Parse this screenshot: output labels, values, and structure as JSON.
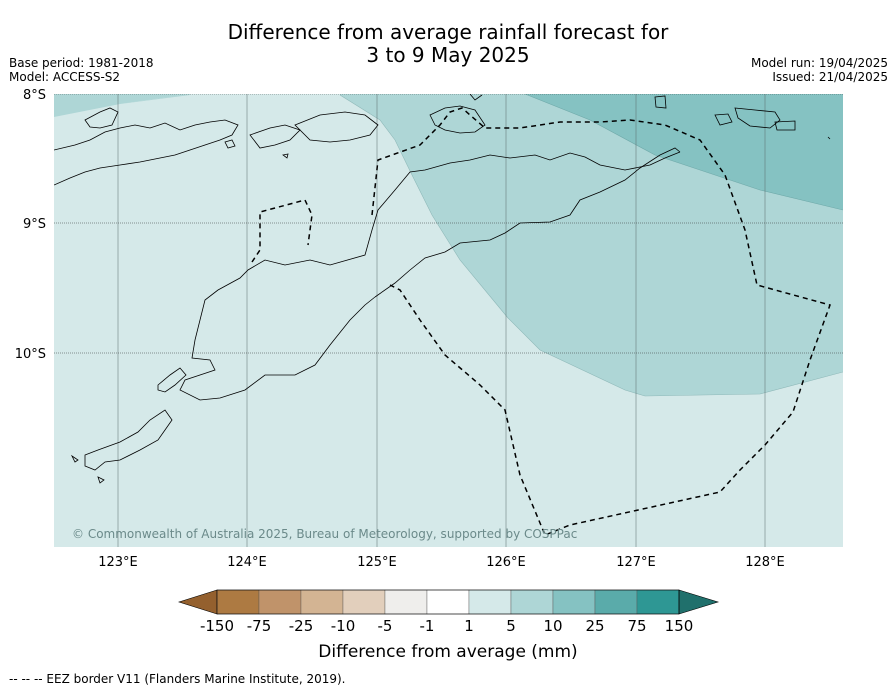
{
  "title": {
    "line1": "Difference from average rainfall forecast for",
    "line2": "3 to 9 May 2025"
  },
  "meta": {
    "base_period": "Base period: 1981-2018",
    "model": "Model: ACCESS-S2",
    "model_run": "Model run: 19/04/2025",
    "issued": "Issued: 21/04/2025"
  },
  "map": {
    "lat_labels": [
      "8°S",
      "9°S",
      "10°S"
    ],
    "lon_labels": [
      "123°E",
      "124°E",
      "125°E",
      "126°E",
      "127°E",
      "128°E"
    ],
    "copyright": "© Commonwealth of Australia 2025, Bureau of Meteorology, supported by COSPPac"
  },
  "colorbar": {
    "tick_labels": [
      "-150",
      "-75",
      "-25",
      "-10",
      "-5",
      "-1",
      "1",
      "5",
      "10",
      "25",
      "75",
      "150"
    ],
    "colors": [
      "#ad7a42",
      "#c0936a",
      "#d3b493",
      "#e2cfbc",
      "#efeeec",
      "#ffffff",
      "#d5e9e9",
      "#aed6d6",
      "#85c2c2",
      "#5aabaa",
      "#2e9794"
    ],
    "under_color": "#94602e",
    "over_color": "#20706c",
    "label": "Difference from average (mm)"
  },
  "legend": {
    "eez_text": "--  --  -- EEZ border V11 (Flanders Marine Institute, 2019)."
  }
}
